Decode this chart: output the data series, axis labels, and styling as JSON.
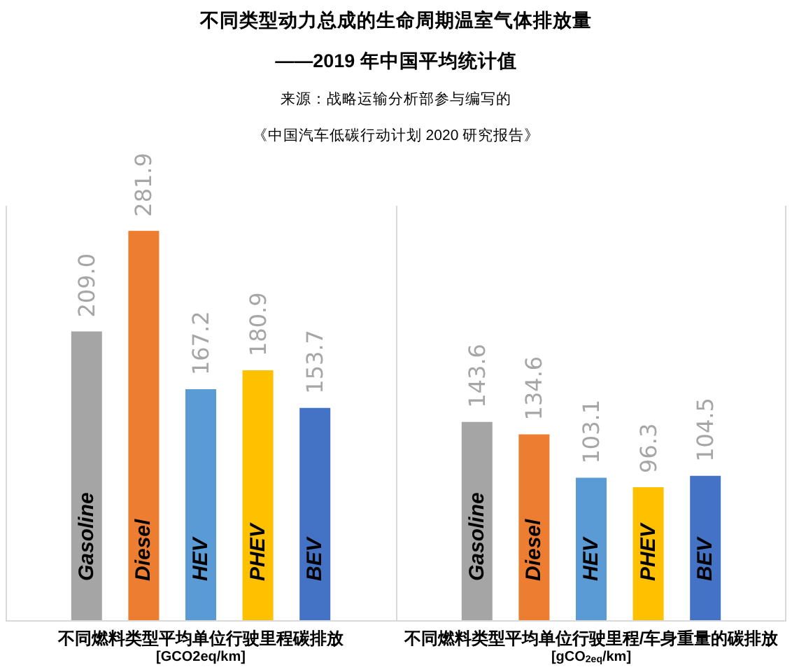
{
  "chart_data": [
    {
      "type": "bar",
      "title": "不同类型动力总成的生命周期温室气体排放量",
      "subtitle": "——2019 年中国平均统计值",
      "annotations": [
        "来源：战略运输分析部参与编写的",
        "《中国汽车低碳行动计划 2020 研究报告》"
      ],
      "categories": [
        "Gasoline",
        "Diesel",
        "HEV",
        "PHEV",
        "BEV"
      ],
      "values": [
        209.0,
        281.9,
        167.2,
        180.9,
        153.7
      ],
      "colors": [
        "#a5a5a5",
        "#ed7d31",
        "#5b9bd5",
        "#ffc000",
        "#4472c4"
      ],
      "value_labels": [
        "209.0",
        "281.9",
        "167.2",
        "180.9",
        "153.7"
      ],
      "xlabel": "不同燃料类型平均单位行驶里程碳排放\n[GCO2eq/km]",
      "tick_labels": "x"
    },
    {
      "type": "bar",
      "categories": [
        "Gasoline",
        "Diesel",
        "HEV",
        "PHEV",
        "BEV"
      ],
      "values": [
        143.6,
        134.6,
        103.1,
        96.3,
        104.5
      ],
      "colors": [
        "#a5a5a5",
        "#ed7d31",
        "#5b9bd5",
        "#ffc000",
        "#4472c4"
      ],
      "value_labels": [
        "143.6",
        "134.6",
        "103.1",
        "96.3",
        "104.5"
      ],
      "xlabel": "不同燃料类型平均单位行驶里程/车身重量的碳排放\n[gCO$_{2eq}$/km]",
      "tick_labels": "x"
    }
  ]
}
